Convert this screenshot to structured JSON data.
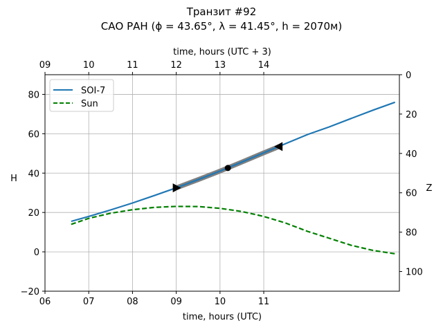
{
  "chart_data": {
    "type": "line",
    "title_line1": "Транзит #92",
    "title_line2": "САО РАН (ϕ = 43.65°, λ = 41.45°, h = 2070м)",
    "xlabel": "time, hours (UTC)",
    "xlabel_top": "time, hours (UTC + 3)",
    "ylabel": "H",
    "ylabel_right": "Z",
    "xlim": [
      6.0,
      14.1
    ],
    "ylim": [
      -20,
      90
    ],
    "zlim": [
      0,
      110
    ],
    "x_ticks": [
      6,
      7,
      8,
      9,
      10,
      11
    ],
    "x_tick_labels": [
      "06",
      "07",
      "08",
      "09",
      "10",
      "11"
    ],
    "top_ticks": [
      9,
      10,
      11,
      12,
      13,
      14
    ],
    "top_tick_labels": [
      "09",
      "10",
      "11",
      "12",
      "13",
      "14"
    ],
    "y_ticks": [
      -20,
      0,
      20,
      40,
      60,
      80
    ],
    "y_tick_labels": [
      "−20",
      "0",
      "20",
      "40",
      "60",
      "80"
    ],
    "z_ticks": [
      0,
      20,
      40,
      60,
      80,
      100
    ],
    "z_tick_labels": [
      "0",
      "20",
      "40",
      "60",
      "80",
      "100"
    ],
    "grid": true,
    "legend_position": "top-left",
    "series": [
      {
        "name": "SOI-7",
        "color": "#1f77b4",
        "style": "solid",
        "x": [
          6.6,
          7.0,
          7.5,
          8.0,
          8.5,
          9.0,
          9.5,
          10.0,
          10.5,
          11.0,
          11.5,
          12.0,
          12.5,
          13.0,
          13.5,
          14.0
        ],
        "y": [
          15.5,
          18.0,
          21.3,
          24.8,
          28.6,
          32.5,
          36.7,
          41.0,
          45.6,
          50.3,
          55.0,
          59.6,
          63.5,
          67.8,
          72.0,
          76.0
        ]
      },
      {
        "name": "Sun",
        "color": "#008000",
        "style": "dashed",
        "x": [
          6.6,
          7.0,
          7.5,
          8.0,
          8.5,
          9.0,
          9.5,
          10.0,
          10.5,
          11.0,
          11.5,
          12.0,
          12.5,
          13.0,
          13.5,
          14.0
        ],
        "y": [
          14.0,
          17.0,
          19.6,
          21.4,
          22.6,
          23.1,
          23.0,
          22.1,
          20.5,
          18.0,
          14.6,
          10.4,
          6.9,
          3.3,
          0.7,
          -1.0
        ]
      }
    ],
    "transit_segment": {
      "color": "#808080",
      "x": [
        9.0,
        9.5,
        10.0,
        10.5,
        11.0,
        11.35
      ],
      "y": [
        32.5,
        36.7,
        41.0,
        45.6,
        50.3,
        53.5
      ]
    },
    "markers": [
      {
        "name": "start",
        "shape": "triangle-right",
        "x": 9.0,
        "y": 32.5
      },
      {
        "name": "mid",
        "shape": "circle",
        "x": 10.18,
        "y": 42.6
      },
      {
        "name": "end",
        "shape": "triangle-left",
        "x": 11.35,
        "y": 53.5
      }
    ]
  }
}
